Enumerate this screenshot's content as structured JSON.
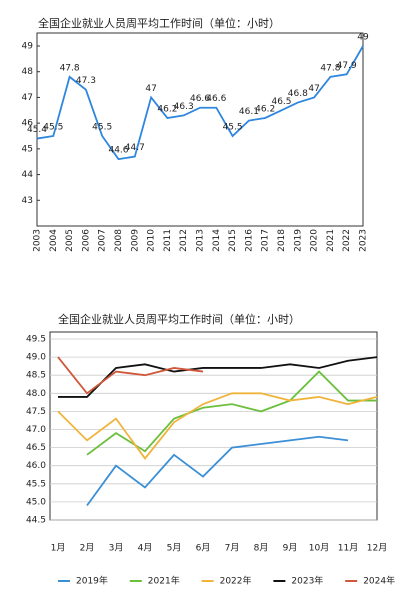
{
  "chart_data": [
    {
      "type": "line",
      "title": "全国企业就业人员周平均工作时间（单位：小时）",
      "categories": [
        "2003",
        "2004",
        "2005",
        "2006",
        "2007",
        "2008",
        "2009",
        "2010",
        "2011",
        "2012",
        "2013",
        "2014",
        "2015",
        "2016",
        "2017",
        "2018",
        "2019",
        "2020",
        "2021",
        "2022",
        "2023"
      ],
      "values": [
        45.4,
        45.5,
        47.8,
        47.3,
        45.5,
        44.6,
        44.7,
        47,
        46.2,
        46.3,
        46.6,
        46.6,
        45.5,
        46.1,
        46.2,
        46.5,
        46.8,
        47,
        47.8,
        47.9,
        49
      ],
      "color": "#2e86de",
      "ylim": [
        42,
        49
      ],
      "yticks": [
        43,
        44,
        45,
        46,
        47,
        48,
        49
      ],
      "grid": false,
      "data_labels": true
    },
    {
      "type": "line",
      "title": "全国企业就业人员周平均工作时间（单位：小时）",
      "categories": [
        "1月",
        "2月",
        "3月",
        "4月",
        "5月",
        "6月",
        "7月",
        "8月",
        "9月",
        "10月",
        "11月",
        "12月"
      ],
      "series": [
        {
          "name": "2019年",
          "color": "#3a8fd6",
          "values": [
            null,
            44.9,
            46.0,
            45.4,
            46.3,
            45.7,
            46.5,
            46.6,
            46.7,
            46.8,
            46.7,
            null
          ]
        },
        {
          "name": "2021年",
          "color": "#6cbf3c",
          "values": [
            null,
            46.3,
            46.9,
            46.4,
            47.3,
            47.6,
            47.7,
            47.5,
            47.8,
            48.6,
            47.8,
            47.8
          ]
        },
        {
          "name": "2022年",
          "color": "#f0b43c",
          "values": [
            47.5,
            46.7,
            47.3,
            46.2,
            47.2,
            47.7,
            48.0,
            48.0,
            47.8,
            47.9,
            47.7,
            47.9
          ]
        },
        {
          "name": "2023年",
          "color": "#111111",
          "values": [
            47.9,
            47.9,
            48.7,
            48.8,
            48.6,
            48.7,
            48.7,
            48.7,
            48.8,
            48.7,
            48.9,
            49.0
          ]
        },
        {
          "name": "2024年",
          "color": "#d0573a",
          "values": [
            49.0,
            48.0,
            48.6,
            48.5,
            48.7,
            48.6,
            null,
            null,
            null,
            null,
            null,
            null
          ]
        }
      ],
      "ylim": [
        44.5,
        49.5
      ],
      "yticks": [
        {
          "value": 44.5,
          "label": "44.5"
        },
        {
          "value": 45,
          "label": "45.0"
        },
        {
          "value": 45.5,
          "label": "45.5"
        },
        {
          "value": 46,
          "label": "46.0"
        },
        {
          "value": 46.5,
          "label": "46.5"
        },
        {
          "value": 47,
          "label": "47.0"
        },
        {
          "value": 47.5,
          "label": "47.5"
        },
        {
          "value": 48,
          "label": "48.0"
        },
        {
          "value": 48.5,
          "label": "48.5"
        },
        {
          "value": 49,
          "label": "49.0"
        },
        {
          "value": 49.5,
          "label": "49.5"
        }
      ],
      "grid": true,
      "legend": "bottom"
    }
  ]
}
